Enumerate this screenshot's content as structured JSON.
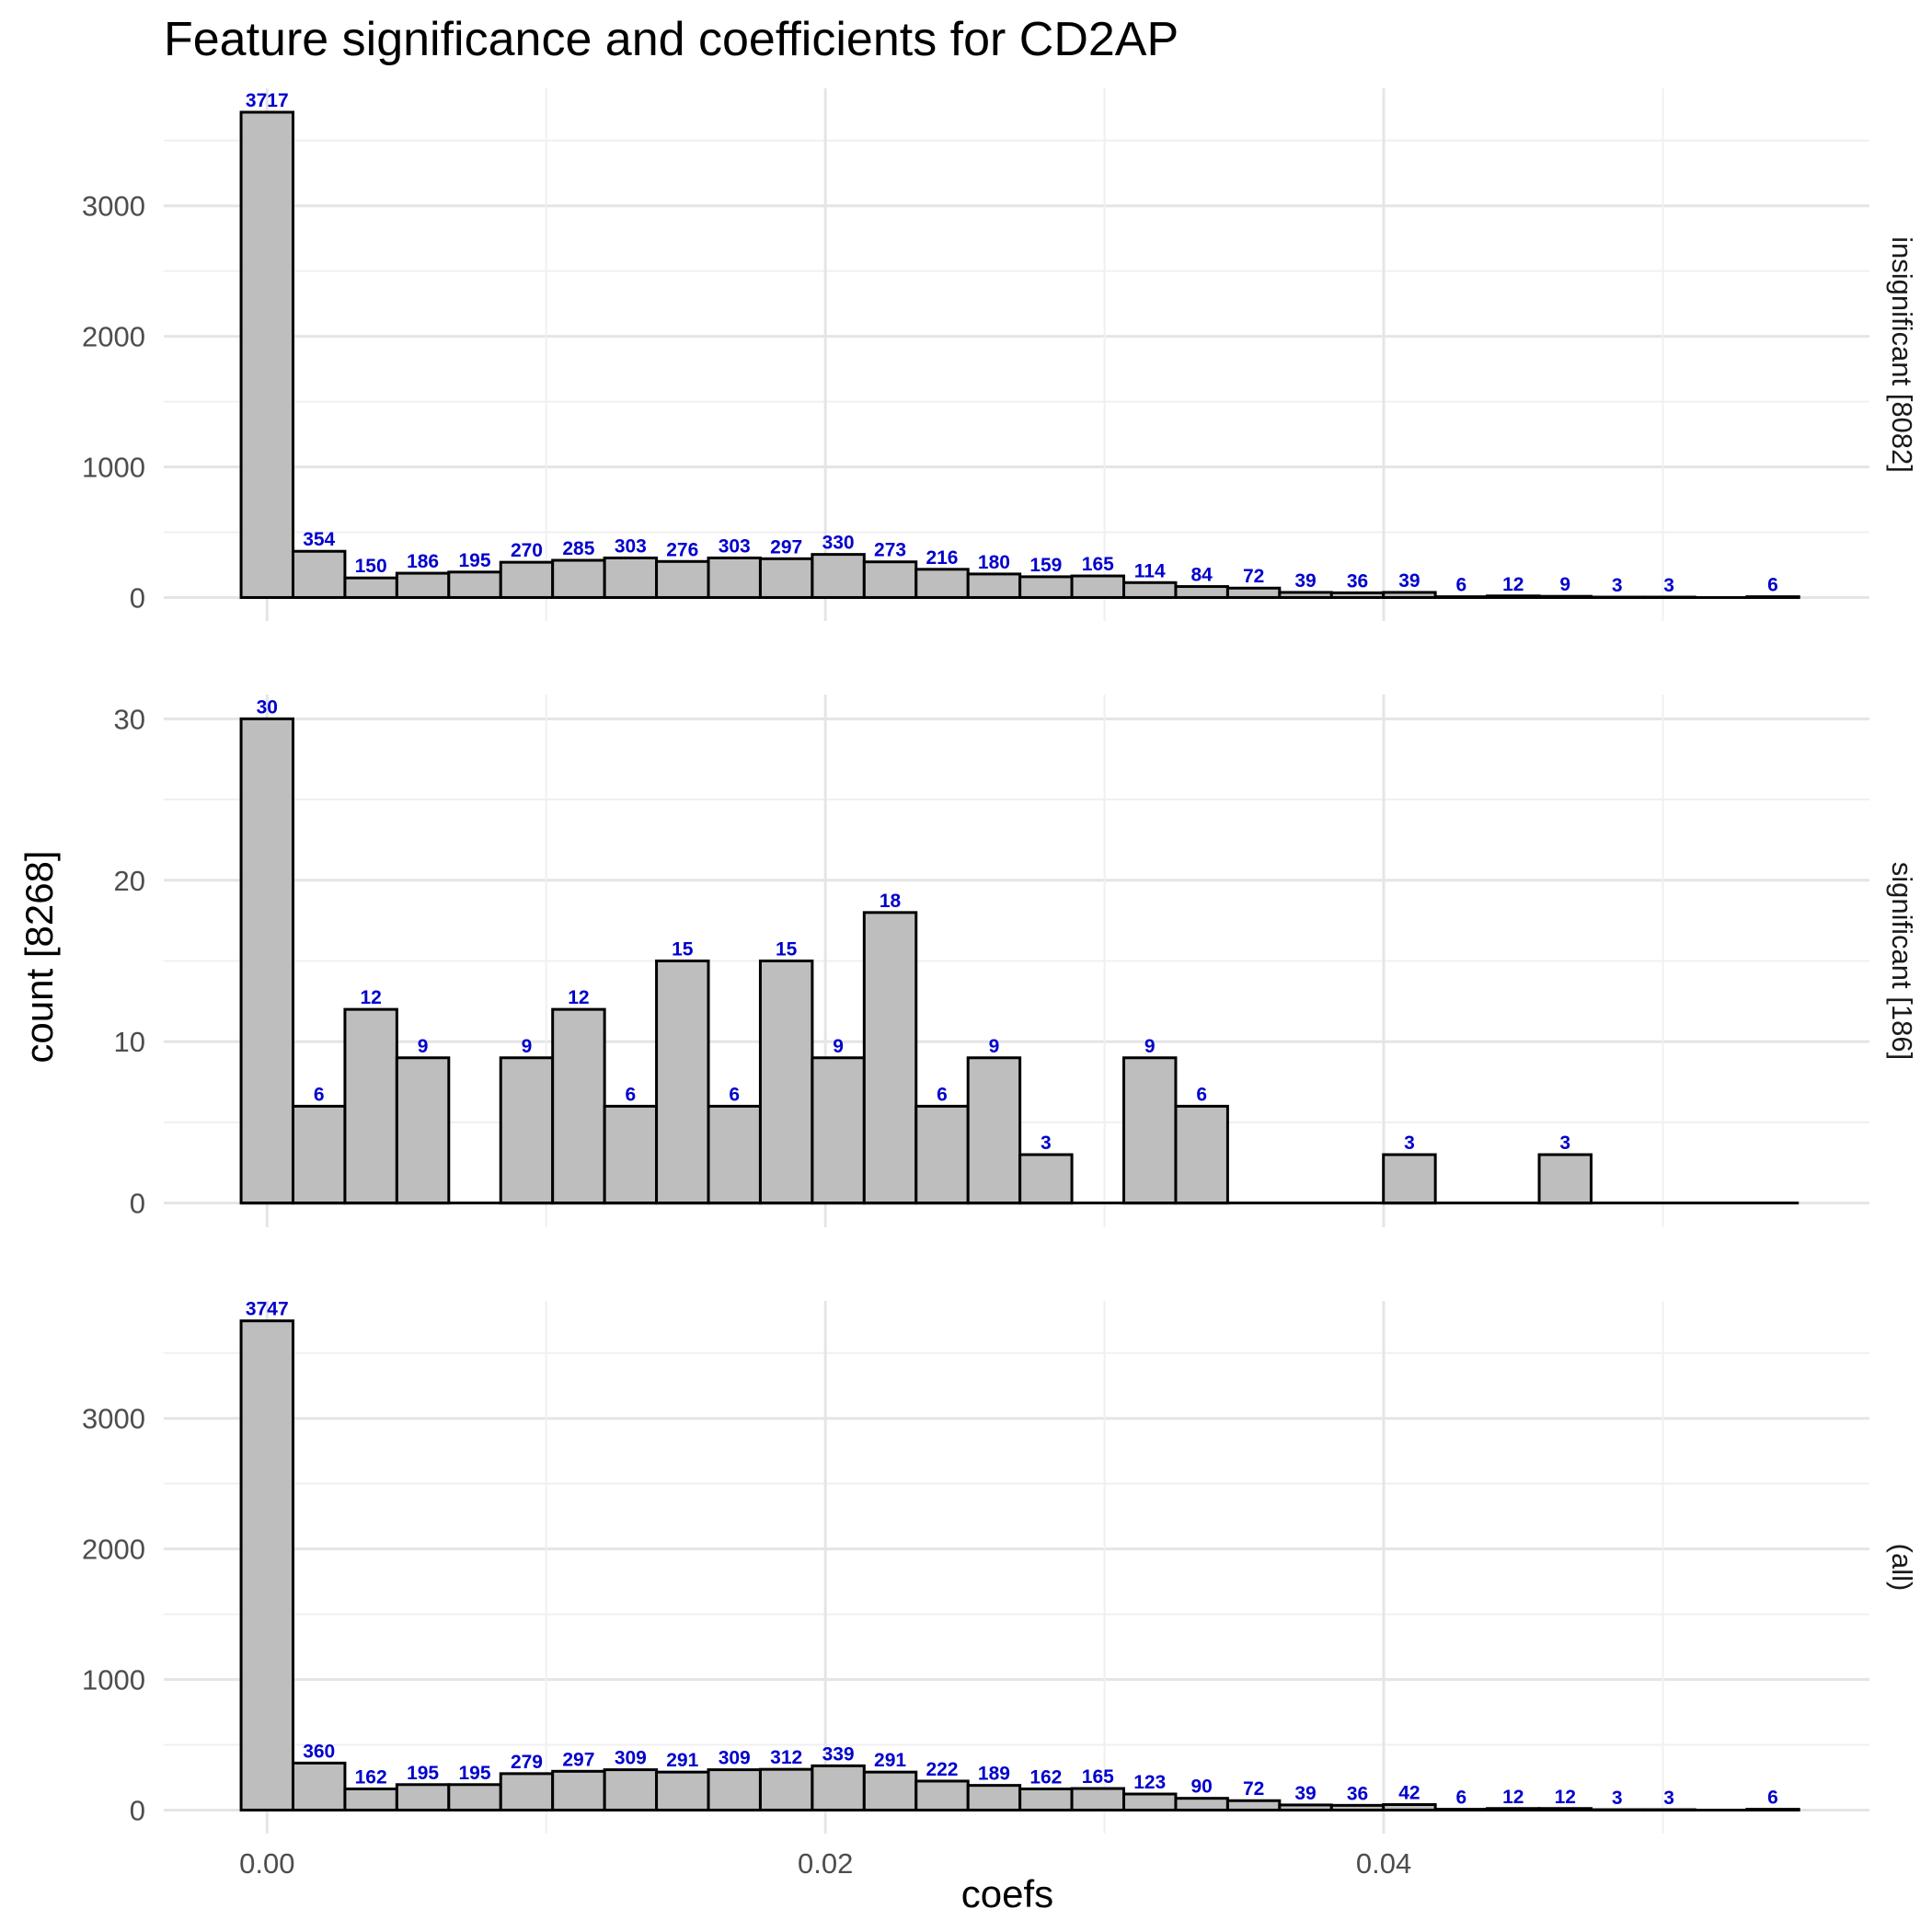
{
  "chart_data": {
    "type": "bar",
    "title": "Feature significance and coefficients for CD2AP",
    "xlabel": "coefs",
    "ylabel": "count [8268]",
    "xlim": [
      -0.0037,
      0.0574
    ],
    "x_ticks": [
      0.0,
      0.02,
      0.04
    ],
    "x_tick_labels": [
      "0.00",
      "0.02",
      "0.04"
    ],
    "bin_width": 0.00186,
    "first_bin_center": 0.0,
    "grid": true,
    "facets": [
      {
        "name": "insignificant [8082]",
        "ylim": [
          -180,
          3900
        ],
        "y_ticks": [
          0,
          1000,
          2000,
          3000
        ],
        "y_tick_labels": [
          "0",
          "1000",
          "2000",
          "3000"
        ],
        "values": [
          3717,
          354,
          150,
          186,
          195,
          270,
          285,
          303,
          276,
          303,
          297,
          330,
          273,
          216,
          180,
          159,
          165,
          114,
          84,
          72,
          39,
          36,
          39,
          6,
          12,
          9,
          3,
          3,
          0,
          6
        ],
        "labels": [
          "3717",
          "354",
          "150",
          "186",
          "195",
          "270",
          "285",
          "303",
          "276",
          "303",
          "297",
          "330",
          "273",
          "216",
          "180",
          "159",
          "165",
          "114",
          "84",
          "72",
          "39",
          "36",
          "39",
          "6",
          "12",
          "9",
          "3",
          "3",
          "",
          "6"
        ]
      },
      {
        "name": "significant [186]",
        "ylim": [
          -1.5,
          31.5
        ],
        "y_ticks": [
          0,
          10,
          20,
          30
        ],
        "y_tick_labels": [
          "0",
          "10",
          "20",
          "30"
        ],
        "values": [
          30,
          6,
          12,
          9,
          0,
          9,
          12,
          6,
          15,
          6,
          15,
          9,
          18,
          6,
          9,
          3,
          0,
          9,
          6,
          0,
          0,
          0,
          3,
          0,
          0,
          3,
          0,
          0,
          0,
          0
        ],
        "labels": [
          "30",
          "6",
          "12",
          "9",
          "",
          "9",
          "12",
          "6",
          "15",
          "6",
          "15",
          "9",
          "18",
          "6",
          "9",
          "3",
          "",
          "9",
          "6",
          "",
          "",
          "",
          "3",
          "",
          "",
          "3",
          "",
          "",
          "",
          ""
        ]
      },
      {
        "name": "(all)",
        "ylim": [
          -180,
          3900
        ],
        "y_ticks": [
          0,
          1000,
          2000,
          3000
        ],
        "y_tick_labels": [
          "0",
          "1000",
          "2000",
          "3000"
        ],
        "values": [
          3747,
          360,
          162,
          195,
          195,
          279,
          297,
          309,
          291,
          309,
          312,
          339,
          291,
          222,
          189,
          162,
          165,
          123,
          90,
          72,
          39,
          36,
          42,
          6,
          12,
          12,
          3,
          3,
          0,
          6
        ],
        "labels": [
          "3747",
          "360",
          "162",
          "195",
          "195",
          "279",
          "297",
          "309",
          "291",
          "309",
          "312",
          "339",
          "291",
          "222",
          "189",
          "162",
          "165",
          "123",
          "90",
          "72",
          "39",
          "36",
          "42",
          "6",
          "12",
          "12",
          "3",
          "3",
          "",
          "6"
        ]
      }
    ]
  }
}
